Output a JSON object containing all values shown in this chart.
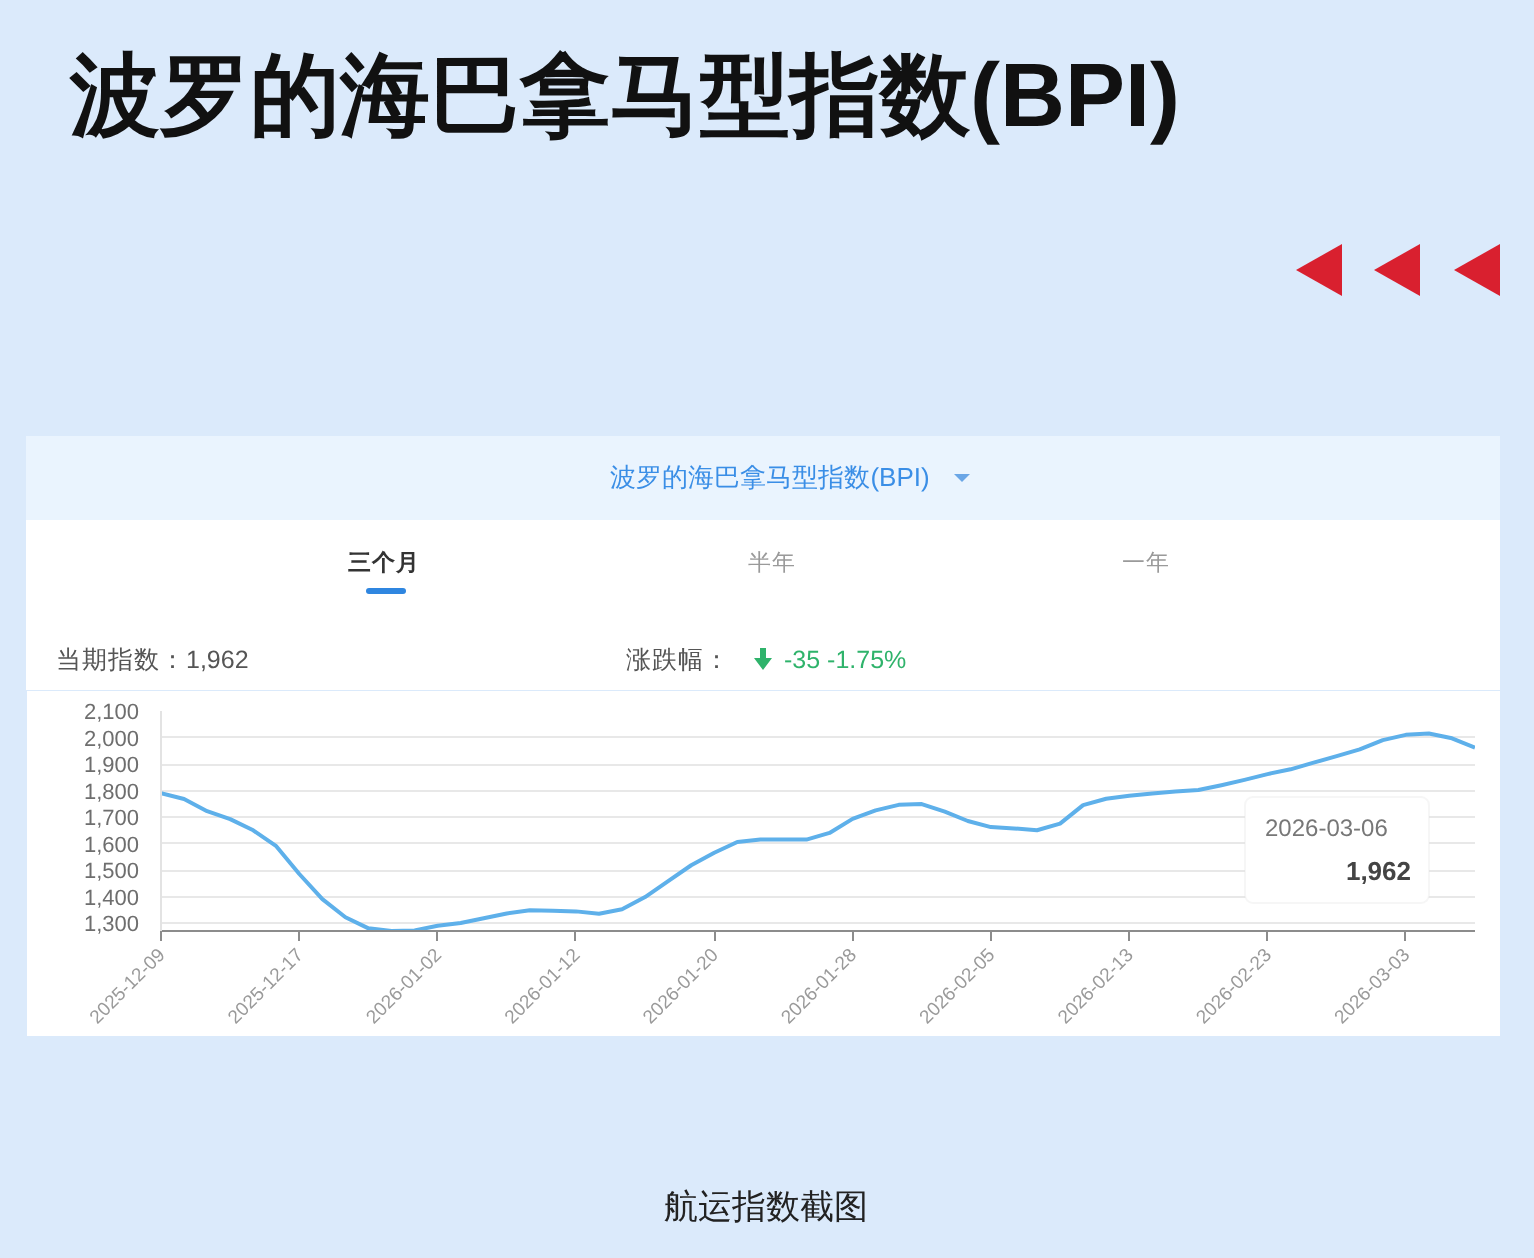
{
  "chart_data": {
    "type": "line",
    "title": "波罗的海巴拿马型指数(BPI)",
    "subtitle": "波罗的海巴拿马型指数(BPI)",
    "categories": [
      "2025-12-09",
      null,
      null,
      null,
      null,
      null,
      "2025-12-17",
      null,
      null,
      null,
      null,
      null,
      "2026-01-02",
      null,
      null,
      null,
      null,
      null,
      "2026-01-12",
      null,
      null,
      null,
      null,
      null,
      "2026-01-20",
      null,
      null,
      null,
      null,
      null,
      "2026-01-28",
      null,
      null,
      null,
      null,
      null,
      "2026-02-05",
      null,
      null,
      null,
      null,
      null,
      "2026-02-13",
      null,
      null,
      null,
      null,
      null,
      "2026-02-23",
      null,
      null,
      null,
      null,
      null,
      "2026-03-03",
      null,
      null,
      null
    ],
    "values": [
      1790,
      1768,
      1722,
      1692,
      1650,
      1590,
      1485,
      1390,
      1322,
      1280,
      1270,
      1272,
      1290,
      1300,
      1318,
      1336,
      1348,
      1346,
      1344,
      1335,
      1352,
      1398,
      1458,
      1518,
      1565,
      1606,
      1615,
      1615,
      1615,
      1640,
      1693,
      1725,
      1746,
      1749,
      1720,
      1685,
      1662,
      1657,
      1650,
      1675,
      1745,
      1769,
      1780,
      1789,
      1796,
      1802,
      1820,
      1840,
      1862,
      1880,
      1905,
      1930,
      1955,
      1990,
      2010,
      2015,
      1997,
      1962
    ],
    "color": "#5eb0ea",
    "ylim": [
      1270,
      2100
    ],
    "yticks": [
      {
        "value": 1300,
        "label": "1,300"
      },
      {
        "value": 1400,
        "label": "1,400"
      },
      {
        "value": 1500,
        "label": "1,500"
      },
      {
        "value": 1600,
        "label": "1,600"
      },
      {
        "value": 1700,
        "label": "1,700"
      },
      {
        "value": 1800,
        "label": "1,800"
      },
      {
        "value": 1900,
        "label": "1,900"
      },
      {
        "value": 2000,
        "label": "2,000"
      },
      {
        "value": 2100,
        "label": "2,100"
      }
    ],
    "grid": "y",
    "line_style": "solid",
    "annotations": [
      "三个月",
      "半年",
      "一年",
      "当期指数：1,962",
      "涨跌幅：",
      "-35 -1.75%",
      "2026-03-06",
      "1,962",
      "航运指数截图"
    ]
  }
}
